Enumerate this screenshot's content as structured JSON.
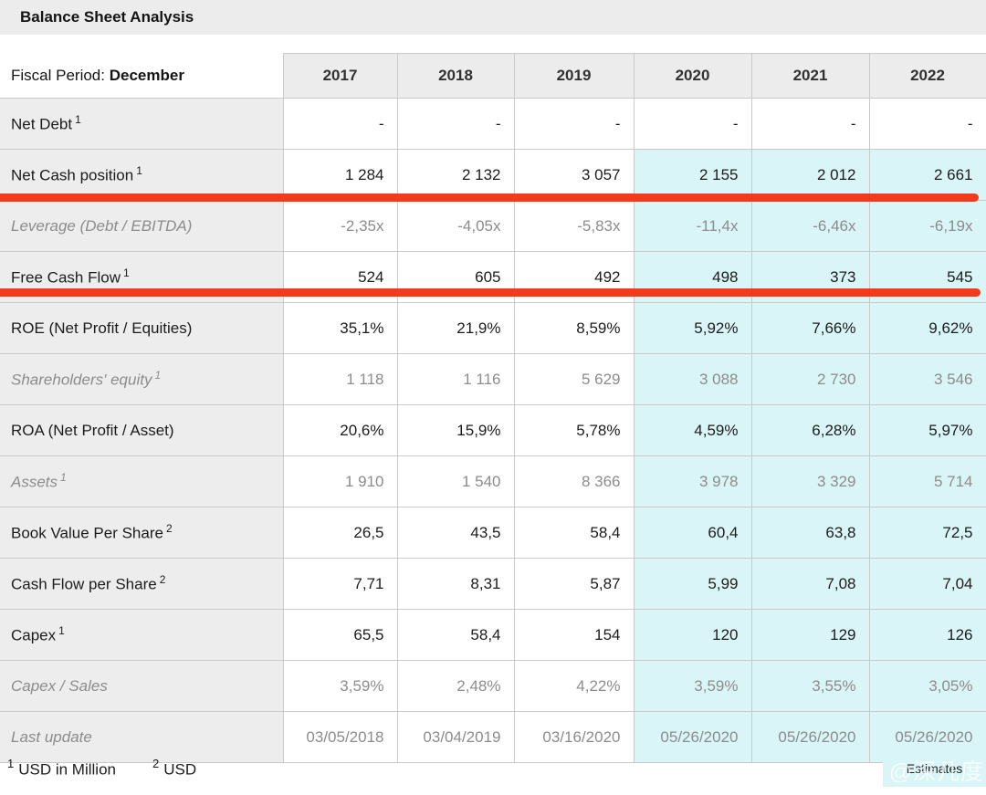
{
  "title": "Balance Sheet Analysis",
  "table": {
    "fiscal_period_label": "Fiscal Period:",
    "fiscal_period_value": "December",
    "years": [
      "2017",
      "2018",
      "2019",
      "2020",
      "2021",
      "2022"
    ],
    "estimate_years": [
      "2020",
      "2021",
      "2022"
    ],
    "rows": [
      {
        "label": "Net Debt",
        "sup": "1",
        "muted": false,
        "estimate": false,
        "values": [
          "-",
          "-",
          "-",
          "-",
          "-",
          "-"
        ]
      },
      {
        "label": "Net Cash position",
        "sup": "1",
        "muted": false,
        "estimate": true,
        "values": [
          "1 284",
          "2 132",
          "3 057",
          "2 155",
          "2 012",
          "2 661"
        ]
      },
      {
        "label": "Leverage (Debt / EBITDA)",
        "sup": "",
        "muted": true,
        "estimate": true,
        "values": [
          "-2,35x",
          "-4,05x",
          "-5,83x",
          "-11,4x",
          "-6,46x",
          "-6,19x"
        ]
      },
      {
        "label": "Free Cash Flow",
        "sup": "1",
        "muted": false,
        "estimate": true,
        "values": [
          "524",
          "605",
          "492",
          "498",
          "373",
          "545"
        ]
      },
      {
        "label": "ROE (Net Profit / Equities)",
        "sup": "",
        "muted": false,
        "estimate": true,
        "values": [
          "35,1%",
          "21,9%",
          "8,59%",
          "5,92%",
          "7,66%",
          "9,62%"
        ]
      },
      {
        "label": "Shareholders' equity",
        "sup": "1",
        "muted": true,
        "estimate": true,
        "values": [
          "1 118",
          "1 116",
          "5 629",
          "3 088",
          "2 730",
          "3 546"
        ]
      },
      {
        "label": "ROA (Net Profit / Asset)",
        "sup": "",
        "muted": false,
        "estimate": true,
        "values": [
          "20,6%",
          "15,9%",
          "5,78%",
          "4,59%",
          "6,28%",
          "5,97%"
        ]
      },
      {
        "label": "Assets",
        "sup": "1",
        "muted": true,
        "estimate": true,
        "values": [
          "1 910",
          "1 540",
          "8 366",
          "3 978",
          "3 329",
          "5 714"
        ]
      },
      {
        "label": "Book Value Per Share",
        "sup": "2",
        "muted": false,
        "estimate": true,
        "values": [
          "26,5",
          "43,5",
          "58,4",
          "60,4",
          "63,8",
          "72,5"
        ]
      },
      {
        "label": "Cash Flow per Share",
        "sup": "2",
        "muted": false,
        "estimate": true,
        "values": [
          "7,71",
          "8,31",
          "5,87",
          "5,99",
          "7,08",
          "7,04"
        ]
      },
      {
        "label": "Capex",
        "sup": "1",
        "muted": false,
        "estimate": true,
        "values": [
          "65,5",
          "58,4",
          "154",
          "120",
          "129",
          "126"
        ]
      },
      {
        "label": "Capex / Sales",
        "sup": "",
        "muted": true,
        "estimate": true,
        "values": [
          "3,59%",
          "2,48%",
          "4,22%",
          "3,59%",
          "3,55%",
          "3,05%"
        ]
      },
      {
        "label": "Last update",
        "sup": "",
        "muted": true,
        "estimate": true,
        "values": [
          "03/05/2018",
          "03/04/2019",
          "03/16/2020",
          "05/26/2020",
          "05/26/2020",
          "05/26/2020"
        ]
      }
    ]
  },
  "annotations": {
    "underlined_rows": [
      "Net Cash position",
      "Free Cash Flow"
    ]
  },
  "footnotes": [
    {
      "sup": "1",
      "text": "USD in Million"
    },
    {
      "sup": "2",
      "text": "USD"
    }
  ],
  "estimates_label": "Estimates",
  "watermark": "@深几度",
  "colors": {
    "header_bg": "#ececec",
    "label_bg": "#ededed",
    "border": "#c9c9c9",
    "estimate_bg": "#d9f5f8",
    "marker_red": "#f23b1d",
    "muted_text": "#8c8c8c",
    "text": "#1c1c1c"
  }
}
